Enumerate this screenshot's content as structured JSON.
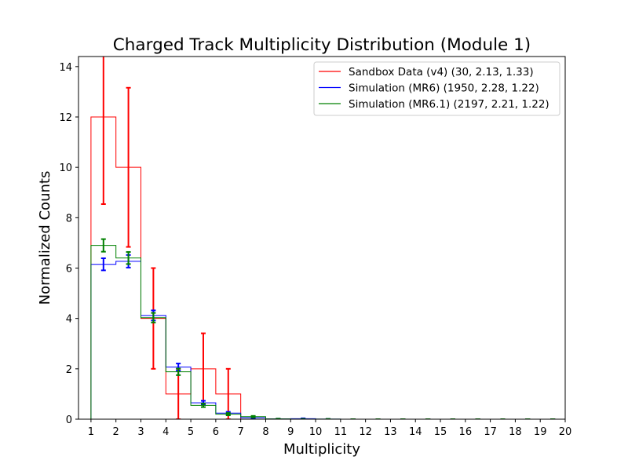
{
  "chart_data": {
    "type": "step-histogram",
    "title": "Charged Track Multiplicity Distribution (Module 1)",
    "xlabel": "Multiplicity",
    "ylabel": "Normalized Counts",
    "xlim": [
      0.5,
      20
    ],
    "ylim": [
      0,
      14.4
    ],
    "xticks": [
      1,
      2,
      3,
      4,
      5,
      6,
      7,
      8,
      9,
      10,
      11,
      12,
      13,
      14,
      15,
      16,
      17,
      18,
      19,
      20
    ],
    "yticks": [
      0,
      2,
      4,
      6,
      8,
      10,
      12,
      14
    ],
    "grid": false,
    "legend_position": "top-right",
    "bin_edges": [
      1,
      2,
      3,
      4,
      5,
      6,
      7,
      8,
      9,
      10,
      11,
      12,
      13,
      14,
      15,
      16,
      17,
      18,
      19,
      20
    ],
    "series": [
      {
        "name": "Sandbox Data (v4) (30, 2.13, 1.33)",
        "color": "#ff0000",
        "values": [
          12,
          10,
          4,
          1,
          2,
          1,
          0,
          0,
          0,
          0,
          0,
          0,
          0,
          0,
          0,
          0,
          0,
          0,
          0
        ],
        "errors": [
          3.46,
          3.16,
          2.0,
          1.0,
          1.41,
          1.0,
          0,
          0,
          0,
          0,
          0,
          0,
          0,
          0,
          0,
          0,
          0,
          0,
          0
        ]
      },
      {
        "name": "Simulation (MR6) (1950, 2.28, 1.22)",
        "color": "#0000ff",
        "values": [
          6.15,
          6.27,
          4.12,
          2.07,
          0.65,
          0.24,
          0.06,
          0.01,
          0.02,
          0.005,
          0,
          0,
          0,
          0,
          0,
          0,
          0,
          0,
          0
        ],
        "errors": [
          0.24,
          0.25,
          0.2,
          0.14,
          0.08,
          0.05,
          0.025,
          0.01,
          0.015,
          0.005,
          0,
          0,
          0,
          0,
          0,
          0,
          0,
          0,
          0
        ]
      },
      {
        "name": "Simulation (MR6.1) (2197, 2.21, 1.22)",
        "color": "#008000",
        "values": [
          6.9,
          6.4,
          4.03,
          1.88,
          0.55,
          0.2,
          0.1,
          0.01,
          0.005,
          0.005,
          0,
          0,
          0,
          0,
          0,
          0,
          0,
          0,
          0
        ],
        "errors": [
          0.25,
          0.24,
          0.19,
          0.13,
          0.07,
          0.045,
          0.03,
          0.01,
          0.005,
          0.005,
          0,
          0,
          0,
          0,
          0,
          0,
          0,
          0,
          0
        ]
      }
    ]
  }
}
